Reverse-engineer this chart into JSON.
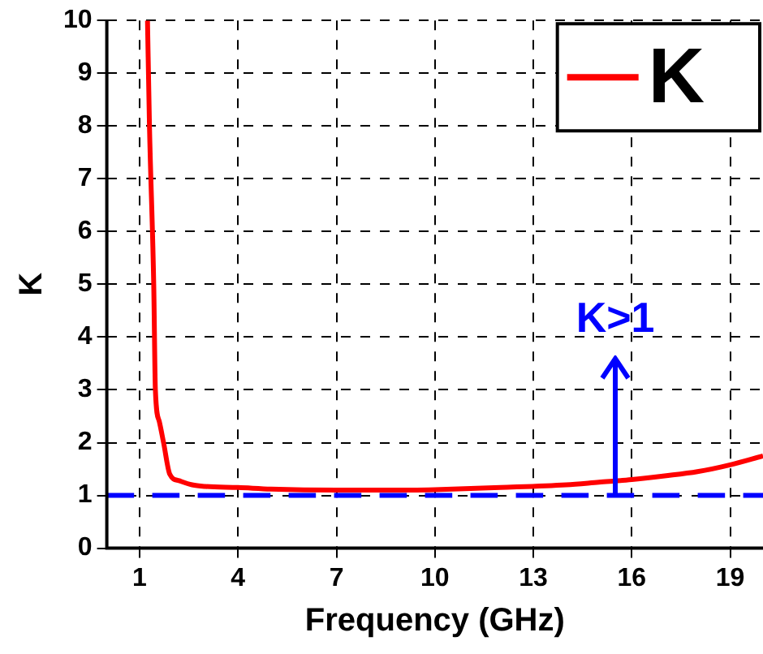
{
  "chart_data": {
    "type": "line",
    "xlabel": "Frequency (GHz)",
    "ylabel": "K",
    "xlim": [
      0,
      20
    ],
    "xticks": [
      1,
      4,
      7,
      10,
      13,
      16,
      19
    ],
    "ylim": [
      0,
      10
    ],
    "yticks": [
      0,
      1,
      2,
      3,
      4,
      5,
      6,
      7,
      8,
      9,
      10
    ],
    "grid": true,
    "legend": "top right",
    "marker": "none",
    "line_style": "solid",
    "series": [
      {
        "name": "K",
        "color": "#ff0000",
        "x": [
          1.24,
          1.3,
          1.43,
          1.48,
          1.6,
          1.73,
          1.92,
          2.2,
          2.6,
          3,
          4,
          5,
          7,
          9,
          10,
          12,
          14,
          15,
          16,
          17,
          18,
          19,
          20
        ],
        "values": [
          10,
          8,
          5,
          3,
          2.4,
          2,
          1.4,
          1.28,
          1.2,
          1.17,
          1.15,
          1.12,
          1.1,
          1.1,
          1.11,
          1.15,
          1.2,
          1.25,
          1.3,
          1.37,
          1.45,
          1.58,
          1.75
        ]
      }
    ],
    "ref_lines": [
      {
        "axis": "y",
        "value": 1,
        "color": "#0000ff",
        "line_style": "dashed"
      }
    ],
    "annotations": [
      {
        "text": "K>1",
        "x": 15.5,
        "y": 1
      }
    ]
  }
}
